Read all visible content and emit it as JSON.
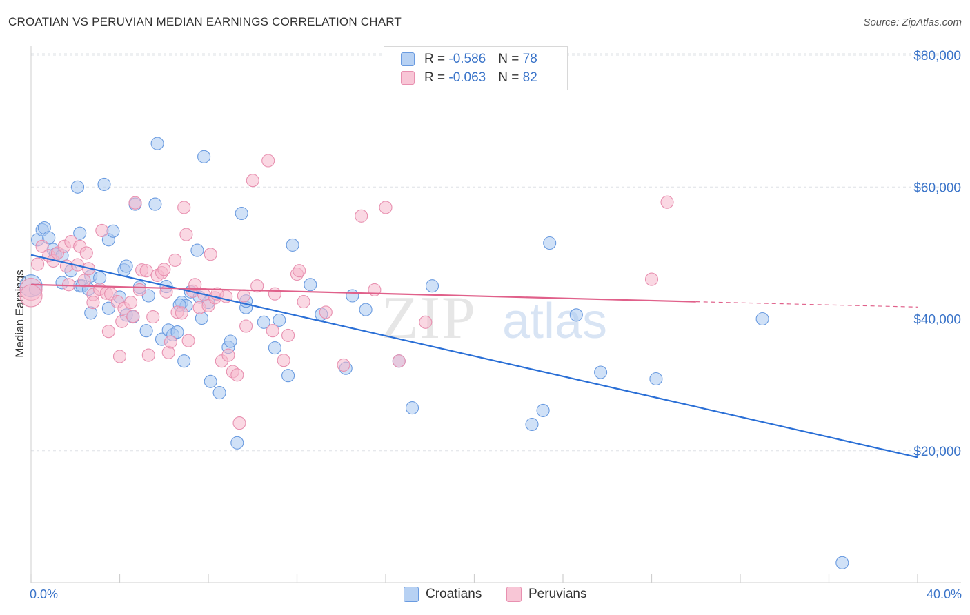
{
  "title": "CROATIAN VS PERUVIAN MEDIAN EARNINGS CORRELATION CHART",
  "source": "Source: ZipAtlas.com",
  "watermark": {
    "zip": "ZIP",
    "atlas": "atlas"
  },
  "legend": {
    "rows": [
      {
        "r_label": "R = ",
        "r_value": "-0.586",
        "n_label": "N = ",
        "n_value": "78"
      },
      {
        "r_label": "R = ",
        "r_value": "-0.063",
        "n_label": "N = ",
        "n_value": "82"
      }
    ]
  },
  "colors": {
    "croatians_fill": "#aac8f0",
    "croatians_stroke": "#6a9be0",
    "croatians_line": "#2a6fd6",
    "peruvians_fill": "#f5b8cc",
    "peruvians_stroke": "#e890b0",
    "peruvians_line": "#e0608a",
    "grid": "#dde0e6",
    "axis_text": "#3a74c9"
  },
  "chart_data": {
    "type": "scatter",
    "title": "CROATIAN VS PERUVIAN MEDIAN EARNINGS CORRELATION CHART",
    "xlabel": "",
    "ylabel": "Median Earnings",
    "xlim": [
      0,
      40
    ],
    "ylim": [
      0,
      82000
    ],
    "x_tick_labels": [
      "0.0%",
      "40.0%"
    ],
    "y_ticks": [
      20000,
      40000,
      60000,
      80000
    ],
    "y_tick_labels": [
      "$20,000",
      "$40,000",
      "$60,000",
      "$80,000"
    ],
    "series": [
      {
        "name": "Croatians",
        "r": -0.586,
        "n": 78,
        "trend": {
          "x": [
            0,
            40
          ],
          "y": [
            49700,
            19000
          ],
          "style": "solid"
        },
        "points": [
          [
            0.3,
            52000
          ],
          [
            0.5,
            53500
          ],
          [
            0.6,
            53800
          ],
          [
            0.8,
            52300
          ],
          [
            1.0,
            50500
          ],
          [
            1.1,
            49800
          ],
          [
            1.4,
            49600
          ],
          [
            1.4,
            45500
          ],
          [
            2.1,
            60000
          ],
          [
            2.2,
            53000
          ],
          [
            2.2,
            45000
          ],
          [
            2.3,
            45000
          ],
          [
            2.6,
            44500
          ],
          [
            2.7,
            46500
          ],
          [
            2.7,
            40900
          ],
          [
            3.3,
            60400
          ],
          [
            3.5,
            52000
          ],
          [
            3.7,
            53300
          ],
          [
            3.1,
            46200
          ],
          [
            3.5,
            41600
          ],
          [
            4.2,
            47400
          ],
          [
            4.3,
            48000
          ],
          [
            4.3,
            40600
          ],
          [
            4.0,
            43300
          ],
          [
            4.6,
            40300
          ],
          [
            4.7,
            57400
          ],
          [
            4.9,
            44800
          ],
          [
            5.2,
            38200
          ],
          [
            5.3,
            43500
          ],
          [
            5.6,
            57400
          ],
          [
            5.7,
            66600
          ],
          [
            5.9,
            36900
          ],
          [
            6.1,
            44900
          ],
          [
            6.2,
            38300
          ],
          [
            6.4,
            37600
          ],
          [
            6.6,
            38000
          ],
          [
            6.8,
            42500
          ],
          [
            6.9,
            33600
          ],
          [
            7.0,
            42000
          ],
          [
            7.2,
            44100
          ],
          [
            7.5,
            50400
          ],
          [
            7.6,
            43300
          ],
          [
            7.7,
            40100
          ],
          [
            7.8,
            64600
          ],
          [
            8.0,
            42500
          ],
          [
            8.1,
            30500
          ],
          [
            8.5,
            28800
          ],
          [
            8.9,
            35700
          ],
          [
            9.0,
            36600
          ],
          [
            9.3,
            21200
          ],
          [
            9.5,
            56000
          ],
          [
            9.7,
            41700
          ],
          [
            9.7,
            42700
          ],
          [
            11.0,
            35600
          ],
          [
            11.2,
            39800
          ],
          [
            11.6,
            31400
          ],
          [
            11.8,
            51200
          ],
          [
            12.6,
            45200
          ],
          [
            13.1,
            40700
          ],
          [
            14.2,
            32500
          ],
          [
            14.5,
            43500
          ],
          [
            15.1,
            41400
          ],
          [
            16.6,
            33600
          ],
          [
            17.2,
            26500
          ],
          [
            18.1,
            45000
          ],
          [
            22.6,
            24000
          ],
          [
            23.1,
            26100
          ],
          [
            23.4,
            51500
          ],
          [
            24.6,
            40600
          ],
          [
            25.7,
            31900
          ],
          [
            28.2,
            30900
          ],
          [
            33.0,
            40000
          ],
          [
            36.6,
            3000
          ],
          [
            0.0,
            45000
          ],
          [
            0.2,
            44500
          ],
          [
            1.8,
            47300
          ],
          [
            6.7,
            42100
          ],
          [
            10.5,
            39500
          ]
        ]
      },
      {
        "name": "Peruvians",
        "r": -0.063,
        "n": 82,
        "trend": {
          "x": [
            0,
            30
          ],
          "y": [
            45200,
            42600
          ],
          "style": "solid",
          "dashed_extension_to": [
            40,
            41800
          ]
        },
        "points": [
          [
            0.0,
            44500
          ],
          [
            0.0,
            43500
          ],
          [
            0.3,
            48300
          ],
          [
            0.5,
            51000
          ],
          [
            0.8,
            49600
          ],
          [
            1.0,
            48800
          ],
          [
            1.2,
            50000
          ],
          [
            1.5,
            51000
          ],
          [
            1.6,
            48000
          ],
          [
            1.7,
            45200
          ],
          [
            1.8,
            51700
          ],
          [
            2.1,
            48200
          ],
          [
            2.2,
            51000
          ],
          [
            2.4,
            45800
          ],
          [
            2.5,
            50000
          ],
          [
            2.6,
            47600
          ],
          [
            2.8,
            43700
          ],
          [
            2.8,
            42500
          ],
          [
            3.1,
            44500
          ],
          [
            3.2,
            53400
          ],
          [
            3.4,
            43900
          ],
          [
            3.5,
            38100
          ],
          [
            3.6,
            43800
          ],
          [
            3.9,
            42600
          ],
          [
            4.0,
            34300
          ],
          [
            4.1,
            39600
          ],
          [
            4.2,
            41600
          ],
          [
            4.5,
            42500
          ],
          [
            4.6,
            40400
          ],
          [
            4.7,
            57600
          ],
          [
            4.9,
            44400
          ],
          [
            5.0,
            47400
          ],
          [
            5.2,
            47300
          ],
          [
            5.3,
            34500
          ],
          [
            5.5,
            40300
          ],
          [
            5.7,
            46600
          ],
          [
            5.9,
            47000
          ],
          [
            6.0,
            47500
          ],
          [
            6.1,
            44100
          ],
          [
            6.2,
            34900
          ],
          [
            6.3,
            36500
          ],
          [
            6.5,
            48900
          ],
          [
            6.6,
            41000
          ],
          [
            6.8,
            40900
          ],
          [
            6.9,
            56900
          ],
          [
            7.0,
            52800
          ],
          [
            7.1,
            36700
          ],
          [
            7.3,
            44200
          ],
          [
            7.4,
            45200
          ],
          [
            7.6,
            41700
          ],
          [
            7.8,
            43700
          ],
          [
            8.0,
            42000
          ],
          [
            8.1,
            49800
          ],
          [
            8.3,
            43200
          ],
          [
            8.4,
            43800
          ],
          [
            8.6,
            33600
          ],
          [
            8.9,
            34500
          ],
          [
            9.1,
            32000
          ],
          [
            9.3,
            31500
          ],
          [
            9.4,
            24200
          ],
          [
            9.6,
            43500
          ],
          [
            9.7,
            38900
          ],
          [
            10.0,
            61000
          ],
          [
            10.2,
            45000
          ],
          [
            10.7,
            64000
          ],
          [
            10.9,
            38200
          ],
          [
            11.0,
            43800
          ],
          [
            11.4,
            33700
          ],
          [
            11.6,
            37500
          ],
          [
            12.0,
            46800
          ],
          [
            12.1,
            47300
          ],
          [
            12.3,
            42600
          ],
          [
            13.3,
            41000
          ],
          [
            14.1,
            33000
          ],
          [
            14.9,
            55600
          ],
          [
            16.0,
            56900
          ],
          [
            16.6,
            33600
          ],
          [
            15.5,
            44400
          ],
          [
            17.8,
            39500
          ],
          [
            28.0,
            46000
          ],
          [
            28.7,
            57700
          ],
          [
            8.8,
            43400
          ]
        ]
      }
    ]
  },
  "bottom_legend": {
    "croatians": "Croatians",
    "peruvians": "Peruvians"
  }
}
